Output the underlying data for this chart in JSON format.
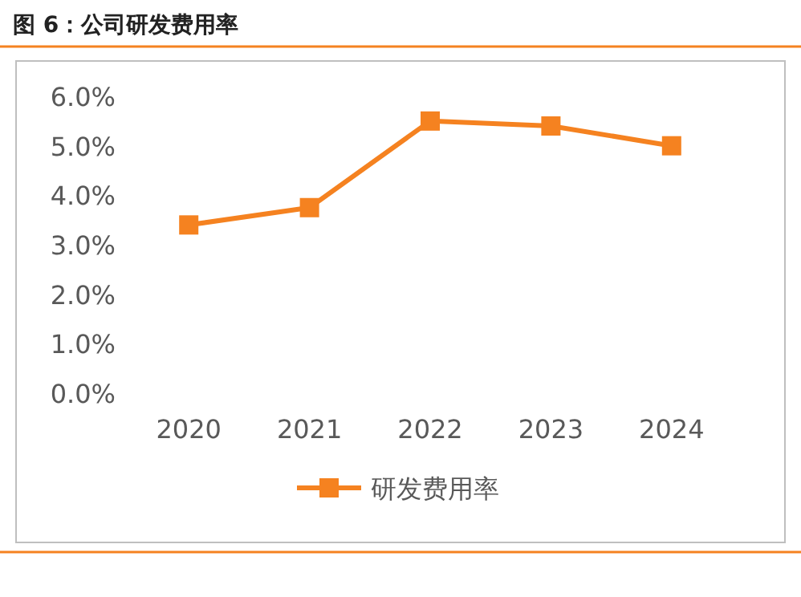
{
  "chart_data": {
    "type": "line",
    "title": "图 6：公司研发费用率",
    "categories": [
      "2020",
      "2021",
      "2022",
      "2023",
      "2024"
    ],
    "series": [
      {
        "name": "研发费用率",
        "color": "#f58220",
        "values": [
          3.4,
          3.75,
          5.5,
          5.4,
          5.0
        ]
      }
    ],
    "ylim": [
      0,
      6
    ],
    "yticks": [
      {
        "value": 0,
        "label": "0.0%"
      },
      {
        "value": 1,
        "label": "1.0%"
      },
      {
        "value": 2,
        "label": "2.0%"
      },
      {
        "value": 3,
        "label": "3.0%"
      },
      {
        "value": 4,
        "label": "4.0%"
      },
      {
        "value": 5,
        "label": "5.0%"
      },
      {
        "value": 6,
        "label": "6.0%"
      }
    ],
    "marker": "square",
    "line_style": "solid",
    "legend": "bottom",
    "grid": false
  }
}
